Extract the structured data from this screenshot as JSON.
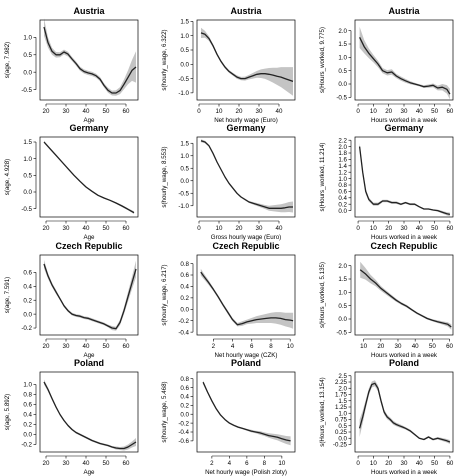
{
  "chart_data": [
    {
      "type": "line",
      "title": "Austria",
      "xlabel": "Age",
      "ylabel": "s(age, 7.982)",
      "xlim": [
        17,
        66
      ],
      "ylim": [
        -0.8,
        1.5
      ],
      "xticks": [
        20,
        30,
        40,
        50,
        60
      ],
      "yticks": [
        -0.5,
        0.0,
        0.5,
        1.0
      ],
      "x": [
        19,
        21,
        23,
        25,
        27,
        29,
        31,
        33,
        35,
        37,
        39,
        41,
        43,
        45,
        47,
        49,
        51,
        53,
        55,
        57,
        59,
        61,
        63,
        65
      ],
      "y": [
        1.3,
        0.85,
        0.6,
        0.5,
        0.5,
        0.58,
        0.52,
        0.38,
        0.25,
        0.1,
        0.02,
        -0.02,
        -0.05,
        -0.1,
        -0.2,
        -0.38,
        -0.52,
        -0.6,
        -0.6,
        -0.53,
        -0.35,
        -0.15,
        0.05,
        0.15
      ],
      "se": [
        0.25,
        0.15,
        0.1,
        0.08,
        0.07,
        0.07,
        0.07,
        0.06,
        0.06,
        0.06,
        0.06,
        0.06,
        0.06,
        0.06,
        0.06,
        0.06,
        0.07,
        0.07,
        0.08,
        0.1,
        0.14,
        0.2,
        0.3,
        0.45
      ]
    },
    {
      "type": "line",
      "title": "Austria",
      "xlabel": "Net hourly wage (Euro)",
      "ylabel": "s(hourly_wage, 6.322)",
      "xlim": [
        -1,
        48
      ],
      "ylim": [
        -1.25,
        1.55
      ],
      "xticks": [
        0,
        10,
        20,
        30,
        40
      ],
      "yticks": [
        -1.0,
        -0.5,
        0.0,
        0.5,
        1.0,
        1.5
      ],
      "x": [
        1,
        3,
        5,
        7,
        9,
        11,
        13,
        15,
        17,
        19,
        21,
        23,
        25,
        27,
        29,
        31,
        33,
        35,
        37,
        39,
        41,
        43,
        45,
        47
      ],
      "y": [
        1.1,
        1.05,
        0.9,
        0.65,
        0.35,
        0.1,
        -0.1,
        -0.25,
        -0.35,
        -0.45,
        -0.5,
        -0.5,
        -0.45,
        -0.4,
        -0.35,
        -0.33,
        -0.33,
        -0.35,
        -0.38,
        -0.42,
        -0.45,
        -0.5,
        -0.55,
        -0.6
      ],
      "se": [
        0.18,
        0.12,
        0.08,
        0.06,
        0.05,
        0.05,
        0.05,
        0.05,
        0.05,
        0.06,
        0.06,
        0.07,
        0.08,
        0.1,
        0.12,
        0.15,
        0.18,
        0.22,
        0.26,
        0.3,
        0.35,
        0.4,
        0.45,
        0.5
      ]
    },
    {
      "type": "line",
      "title": "Austria",
      "xlabel": "Hours worked in a week",
      "ylabel": "s(Hours_worked, 9.775)",
      "xlim": [
        -2,
        62
      ],
      "ylim": [
        -0.6,
        2.4
      ],
      "xticks": [
        0,
        10,
        20,
        30,
        40,
        50,
        60
      ],
      "yticks": [
        -0.5,
        0.0,
        0.5,
        1.0,
        1.5,
        2.0
      ],
      "x": [
        1,
        4,
        7,
        10,
        13,
        16,
        19,
        22,
        25,
        28,
        31,
        34,
        37,
        40,
        43,
        46,
        49,
        52,
        55,
        58,
        60
      ],
      "y": [
        1.75,
        1.4,
        1.15,
        0.95,
        0.75,
        0.5,
        0.42,
        0.45,
        0.3,
        0.2,
        0.12,
        0.05,
        0.0,
        -0.05,
        -0.1,
        -0.08,
        -0.05,
        -0.15,
        -0.12,
        -0.2,
        -0.38
      ],
      "se": [
        0.4,
        0.25,
        0.18,
        0.14,
        0.12,
        0.1,
        0.1,
        0.1,
        0.08,
        0.08,
        0.07,
        0.06,
        0.05,
        0.04,
        0.05,
        0.06,
        0.07,
        0.09,
        0.12,
        0.16,
        0.2
      ]
    },
    {
      "type": "line",
      "title": "Germany",
      "xlabel": "Age",
      "ylabel": "s(age, 4.928)",
      "xlim": [
        17,
        66
      ],
      "ylim": [
        -0.75,
        1.65
      ],
      "xticks": [
        20,
        30,
        40,
        50,
        60
      ],
      "yticks": [
        -0.5,
        0.0,
        0.5,
        1.0,
        1.5
      ],
      "x": [
        19,
        22,
        25,
        28,
        31,
        34,
        37,
        40,
        43,
        46,
        49,
        52,
        55,
        58,
        61,
        64
      ],
      "y": [
        1.5,
        1.3,
        1.1,
        0.9,
        0.7,
        0.5,
        0.32,
        0.15,
        0.02,
        -0.1,
        -0.18,
        -0.25,
        -0.33,
        -0.42,
        -0.52,
        -0.62
      ],
      "se": [
        0.04,
        0.03,
        0.03,
        0.03,
        0.02,
        0.02,
        0.02,
        0.02,
        0.02,
        0.02,
        0.02,
        0.02,
        0.02,
        0.03,
        0.03,
        0.04
      ]
    },
    {
      "type": "line",
      "title": "Germany",
      "xlabel": "Gross hourly wage (Euro)",
      "ylabel": "s(hourly_wage, 8.553)",
      "xlim": [
        -1,
        48
      ],
      "ylim": [
        -1.45,
        1.75
      ],
      "xticks": [
        0,
        10,
        20,
        30,
        40
      ],
      "yticks": [
        -1.0,
        -0.5,
        0.0,
        0.5,
        1.0,
        1.5
      ],
      "x": [
        1,
        3,
        5,
        7,
        9,
        11,
        13,
        15,
        17,
        19,
        21,
        23,
        25,
        27,
        29,
        31,
        33,
        35,
        37,
        39,
        41,
        43,
        45,
        47
      ],
      "y": [
        1.6,
        1.55,
        1.4,
        1.1,
        0.75,
        0.45,
        0.15,
        -0.1,
        -0.3,
        -0.5,
        -0.65,
        -0.75,
        -0.85,
        -0.9,
        -0.95,
        -1.0,
        -1.05,
        -1.1,
        -1.1,
        -1.1,
        -1.1,
        -1.08,
        -1.05,
        -1.05
      ],
      "se": [
        0.06,
        0.05,
        0.04,
        0.03,
        0.03,
        0.03,
        0.03,
        0.03,
        0.03,
        0.03,
        0.03,
        0.04,
        0.04,
        0.05,
        0.06,
        0.07,
        0.08,
        0.1,
        0.12,
        0.14,
        0.16,
        0.18,
        0.2,
        0.22
      ]
    },
    {
      "type": "line",
      "title": "Germany",
      "xlabel": "Hours worked in a week",
      "ylabel": "s(Hours_worked, 11.214)",
      "xlim": [
        -2,
        62
      ],
      "ylim": [
        -0.2,
        2.3
      ],
      "xticks": [
        0,
        10,
        20,
        30,
        40,
        50,
        60
      ],
      "yticks": [
        0.0,
        0.2,
        0.4,
        0.6,
        0.8,
        1.0,
        1.2,
        1.4,
        1.6,
        1.8,
        2.0,
        2.2
      ],
      "x": [
        1,
        3,
        5,
        7,
        10,
        13,
        16,
        19,
        22,
        25,
        28,
        31,
        34,
        37,
        40,
        43,
        46,
        49,
        52,
        55,
        58,
        60
      ],
      "y": [
        2.0,
        1.2,
        0.6,
        0.35,
        0.2,
        0.2,
        0.3,
        0.3,
        0.25,
        0.25,
        0.2,
        0.25,
        0.2,
        0.2,
        0.12,
        0.05,
        0.05,
        0.02,
        0.0,
        -0.05,
        -0.1,
        -0.12
      ],
      "se": [
        0.12,
        0.1,
        0.08,
        0.06,
        0.05,
        0.05,
        0.04,
        0.04,
        0.04,
        0.04,
        0.03,
        0.03,
        0.03,
        0.03,
        0.02,
        0.02,
        0.02,
        0.02,
        0.03,
        0.04,
        0.05,
        0.06
      ]
    },
    {
      "type": "line",
      "title": "Czech Republic",
      "xlabel": "Age",
      "ylabel": "s(age, 7.591)",
      "xlim": [
        17,
        66
      ],
      "ylim": [
        -0.3,
        0.85
      ],
      "xticks": [
        20,
        30,
        40,
        50,
        60
      ],
      "yticks": [
        -0.2,
        0.0,
        0.2,
        0.4,
        0.6
      ],
      "x": [
        19,
        21,
        23,
        25,
        27,
        29,
        31,
        33,
        35,
        37,
        39,
        41,
        43,
        45,
        47,
        49,
        51,
        53,
        55,
        57,
        59,
        61,
        63,
        65
      ],
      "y": [
        0.72,
        0.55,
        0.42,
        0.32,
        0.22,
        0.12,
        0.05,
        0.0,
        -0.02,
        -0.03,
        -0.05,
        -0.06,
        -0.08,
        -0.1,
        -0.12,
        -0.14,
        -0.17,
        -0.2,
        -0.21,
        -0.12,
        0.05,
        0.25,
        0.45,
        0.65
      ],
      "se": [
        0.06,
        0.04,
        0.03,
        0.03,
        0.02,
        0.02,
        0.02,
        0.02,
        0.02,
        0.02,
        0.02,
        0.02,
        0.02,
        0.02,
        0.02,
        0.02,
        0.02,
        0.03,
        0.03,
        0.04,
        0.05,
        0.07,
        0.09,
        0.12
      ]
    },
    {
      "type": "line",
      "title": "Czech Republic",
      "xlabel": "Net hourly wage (CZK)",
      "ylabel": "s(hourly_wage, 6.217)",
      "xlim": [
        0.3,
        10.5
      ],
      "ylim": [
        -0.45,
        0.95
      ],
      "xticks": [
        2,
        4,
        6,
        8,
        10
      ],
      "yticks": [
        -0.4,
        -0.2,
        0.0,
        0.2,
        0.4,
        0.6,
        0.8
      ],
      "x": [
        0.7,
        1.0,
        1.5,
        2.0,
        2.5,
        3.0,
        3.5,
        4.0,
        4.5,
        5.0,
        5.5,
        6.0,
        6.5,
        7.0,
        7.5,
        8.0,
        8.5,
        9.0,
        9.5,
        10.0,
        10.3
      ],
      "y": [
        0.65,
        0.58,
        0.47,
        0.35,
        0.22,
        0.08,
        -0.05,
        -0.18,
        -0.27,
        -0.25,
        -0.22,
        -0.2,
        -0.18,
        -0.17,
        -0.16,
        -0.15,
        -0.15,
        -0.16,
        -0.18,
        -0.19,
        -0.2
      ],
      "se": [
        0.06,
        0.05,
        0.04,
        0.03,
        0.03,
        0.03,
        0.03,
        0.03,
        0.03,
        0.04,
        0.04,
        0.05,
        0.06,
        0.07,
        0.08,
        0.09,
        0.1,
        0.11,
        0.12,
        0.13,
        0.14
      ]
    },
    {
      "type": "line",
      "title": "Czech Republic",
      "xlabel": "Hours worked in a week",
      "ylabel": "s(Hours_worked, 5.135)",
      "xlim": [
        5,
        62
      ],
      "ylim": [
        -0.6,
        2.4
      ],
      "xticks": [
        10,
        20,
        30,
        40,
        50,
        60
      ],
      "yticks": [
        -0.5,
        0.0,
        0.5,
        1.0,
        1.5,
        2.0
      ],
      "x": [
        8,
        11,
        14,
        17,
        20,
        23,
        26,
        29,
        32,
        35,
        38,
        41,
        44,
        47,
        50,
        53,
        56,
        59,
        61
      ],
      "y": [
        1.85,
        1.7,
        1.5,
        1.35,
        1.15,
        1.0,
        0.85,
        0.7,
        0.58,
        0.48,
        0.35,
        0.22,
        0.12,
        0.02,
        -0.05,
        -0.1,
        -0.15,
        -0.2,
        -0.3
      ],
      "se": [
        0.3,
        0.22,
        0.16,
        0.12,
        0.09,
        0.08,
        0.07,
        0.06,
        0.05,
        0.05,
        0.04,
        0.04,
        0.04,
        0.04,
        0.04,
        0.05,
        0.06,
        0.08,
        0.1
      ]
    },
    {
      "type": "line",
      "title": "Poland",
      "xlabel": "Age",
      "ylabel": "s(age, 5.892)",
      "xlim": [
        17,
        66
      ],
      "ylim": [
        -0.35,
        1.25
      ],
      "xticks": [
        20,
        30,
        40,
        50,
        60
      ],
      "yticks": [
        -0.2,
        0.0,
        0.2,
        0.4,
        0.6,
        0.8,
        1.0
      ],
      "x": [
        19,
        21,
        23,
        25,
        27,
        29,
        31,
        33,
        35,
        37,
        39,
        41,
        43,
        45,
        47,
        49,
        51,
        53,
        55,
        57,
        59,
        61,
        63,
        65
      ],
      "y": [
        1.05,
        0.9,
        0.72,
        0.55,
        0.4,
        0.28,
        0.18,
        0.1,
        0.04,
        0.0,
        -0.04,
        -0.08,
        -0.12,
        -0.15,
        -0.18,
        -0.2,
        -0.22,
        -0.25,
        -0.27,
        -0.28,
        -0.28,
        -0.25,
        -0.2,
        -0.15
      ],
      "se": [
        0.05,
        0.04,
        0.03,
        0.03,
        0.02,
        0.02,
        0.02,
        0.02,
        0.02,
        0.02,
        0.02,
        0.02,
        0.02,
        0.02,
        0.02,
        0.02,
        0.02,
        0.02,
        0.03,
        0.03,
        0.04,
        0.05,
        0.06,
        0.08
      ]
    },
    {
      "type": "line",
      "title": "Poland",
      "xlabel": "Net hourly wage (Polish zloty)",
      "ylabel": "s(hourly_wage, 5.468)",
      "xlim": [
        0.3,
        11.5
      ],
      "ylim": [
        -0.85,
        0.95
      ],
      "xticks": [
        2,
        4,
        6,
        8,
        10
      ],
      "yticks": [
        -0.6,
        -0.4,
        -0.2,
        0.0,
        0.2,
        0.4,
        0.6,
        0.8
      ],
      "x": [
        1.0,
        1.5,
        2.0,
        2.5,
        3.0,
        3.5,
        4.0,
        4.5,
        5.0,
        5.5,
        6.0,
        6.5,
        7.0,
        7.5,
        8.0,
        8.5,
        9.0,
        9.5,
        10.0,
        10.5,
        11.0
      ],
      "y": [
        0.72,
        0.5,
        0.3,
        0.12,
        -0.02,
        -0.12,
        -0.2,
        -0.25,
        -0.29,
        -0.32,
        -0.35,
        -0.38,
        -0.4,
        -0.42,
        -0.45,
        -0.48,
        -0.5,
        -0.52,
        -0.55,
        -0.58,
        -0.6
      ],
      "se": [
        0.04,
        0.03,
        0.03,
        0.02,
        0.02,
        0.02,
        0.02,
        0.02,
        0.02,
        0.02,
        0.02,
        0.03,
        0.03,
        0.04,
        0.04,
        0.05,
        0.06,
        0.07,
        0.08,
        0.09,
        0.1
      ]
    },
    {
      "type": "line",
      "title": "Poland",
      "xlabel": "Hours worked in a week",
      "ylabel": "s(Hours_worked, 13.154)",
      "xlim": [
        -2,
        62
      ],
      "ylim": [
        -0.55,
        2.65
      ],
      "xticks": [
        0,
        10,
        20,
        30,
        40,
        50,
        60
      ],
      "yticks": [
        -0.25,
        0.0,
        0.25,
        0.5,
        0.75,
        1.0,
        1.25,
        1.5,
        1.75,
        2.0,
        2.25,
        2.5
      ],
      "x": [
        1,
        3,
        5,
        7,
        9,
        11,
        13,
        15,
        17,
        19,
        21,
        23,
        25,
        27,
        29,
        31,
        34,
        37,
        40,
        43,
        46,
        49,
        52,
        55,
        58,
        60
      ],
      "y": [
        0.4,
        0.85,
        1.35,
        1.85,
        2.15,
        2.2,
        2.0,
        1.5,
        1.05,
        0.85,
        0.75,
        0.62,
        0.55,
        0.5,
        0.45,
        0.4,
        0.3,
        0.15,
        0.0,
        -0.05,
        0.05,
        -0.05,
        0.0,
        -0.05,
        -0.1,
        -0.15
      ],
      "se": [
        0.35,
        0.25,
        0.18,
        0.14,
        0.12,
        0.12,
        0.12,
        0.12,
        0.1,
        0.09,
        0.08,
        0.08,
        0.07,
        0.07,
        0.06,
        0.05,
        0.05,
        0.04,
        0.03,
        0.03,
        0.04,
        0.04,
        0.05,
        0.06,
        0.07,
        0.08
      ]
    }
  ]
}
